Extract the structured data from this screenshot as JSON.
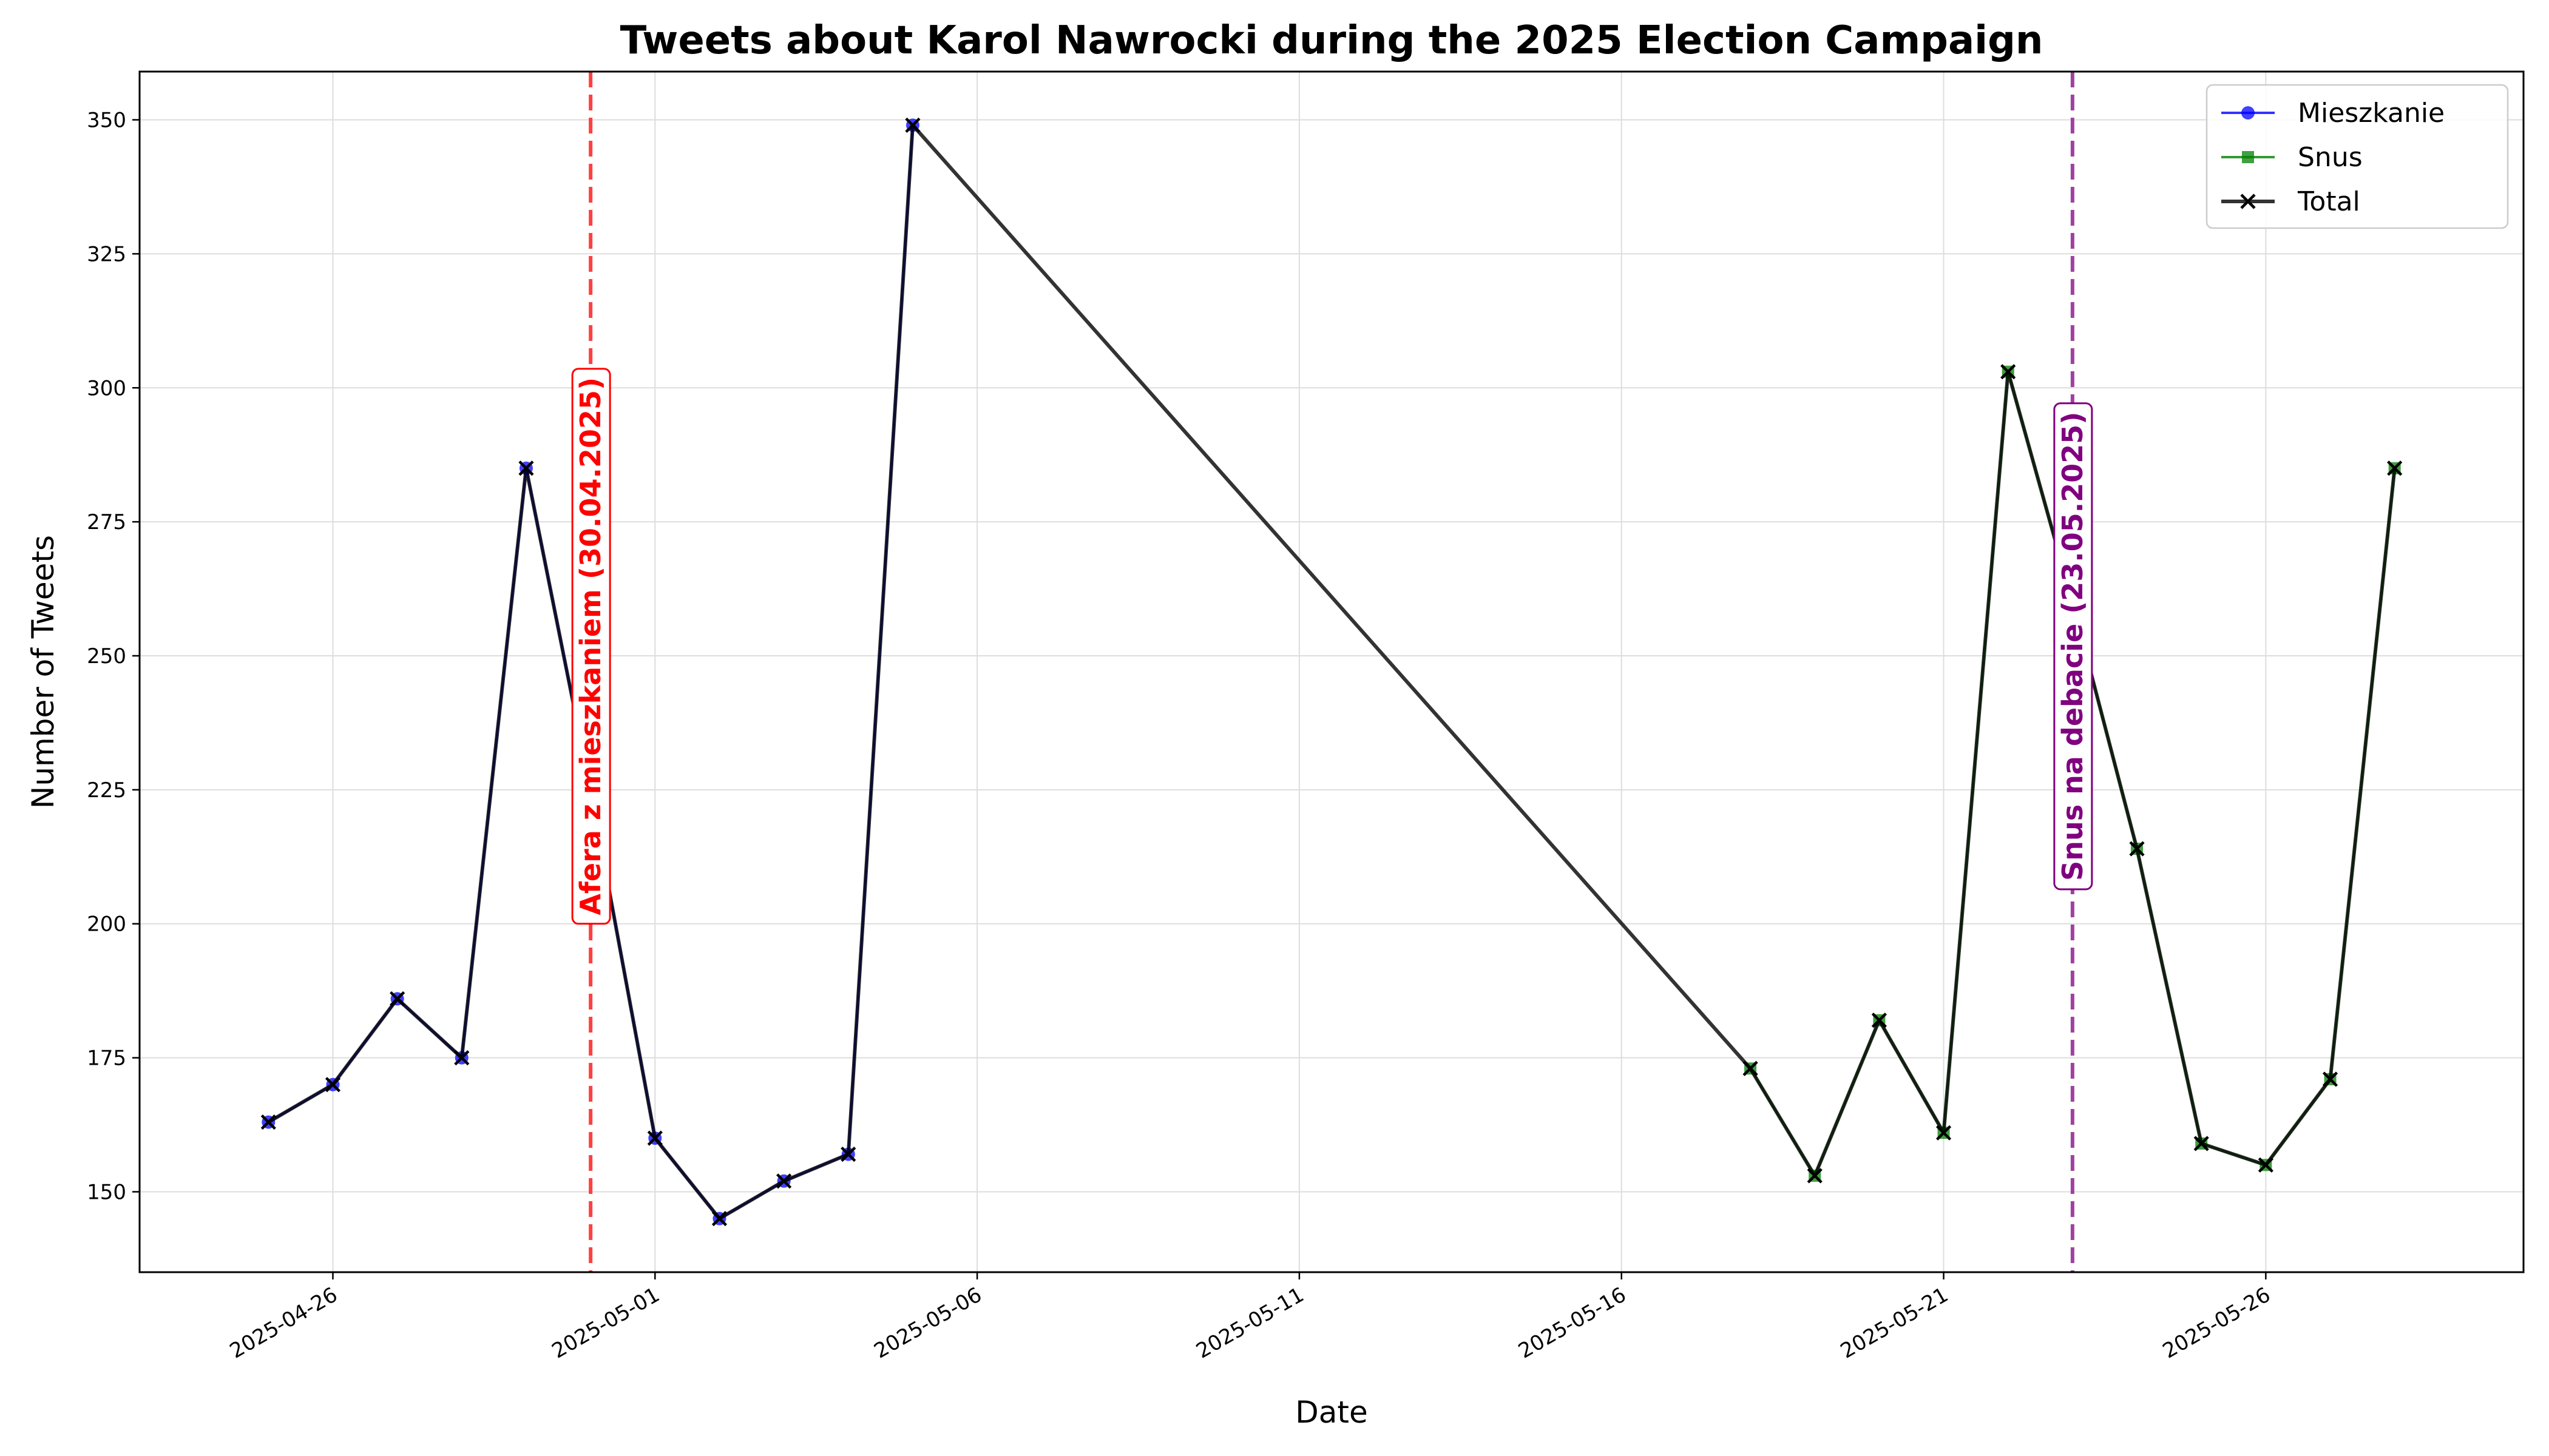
{
  "chart_data": {
    "type": "line",
    "title": "Tweets about Karol Nawrocki during the 2025 Election Campaign",
    "xlabel": "Date",
    "ylabel": "Number of Tweets",
    "x_axis": {
      "type": "date",
      "range": [
        "2025-04-23",
        "2025-05-30"
      ],
      "ticks": [
        "2025-04-26",
        "2025-05-01",
        "2025-05-06",
        "2025-05-11",
        "2025-05-16",
        "2025-05-21",
        "2025-05-26"
      ]
    },
    "y_axis": {
      "range": [
        135,
        359
      ],
      "ticks": [
        150,
        175,
        200,
        225,
        250,
        275,
        300,
        325,
        350
      ]
    },
    "grid": true,
    "legend_position": "top-right",
    "series": [
      {
        "name": "Mieszkanie",
        "color": "#0000ff",
        "marker": "circle",
        "points": [
          [
            "2025-04-25",
            163
          ],
          [
            "2025-04-26",
            170
          ],
          [
            "2025-04-27",
            186
          ],
          [
            "2025-04-28",
            175
          ],
          [
            "2025-04-29",
            285
          ],
          [
            "2025-04-30",
            225
          ],
          [
            "2025-05-01",
            160
          ],
          [
            "2025-05-02",
            145
          ],
          [
            "2025-05-03",
            152
          ],
          [
            "2025-05-04",
            157
          ],
          [
            "2025-05-05",
            349
          ]
        ]
      },
      {
        "name": "Snus",
        "color": "#008000",
        "marker": "square",
        "points": [
          [
            "2025-05-18",
            173
          ],
          [
            "2025-05-19",
            153
          ],
          [
            "2025-05-20",
            182
          ],
          [
            "2025-05-21",
            161
          ],
          [
            "2025-05-22",
            303
          ],
          [
            "2025-05-23",
            260
          ],
          [
            "2025-05-24",
            214
          ],
          [
            "2025-05-25",
            159
          ],
          [
            "2025-05-26",
            155
          ],
          [
            "2025-05-27",
            171
          ],
          [
            "2025-05-28",
            285
          ]
        ]
      },
      {
        "name": "Total",
        "color": "#000000",
        "marker": "x",
        "points": [
          [
            "2025-04-25",
            163
          ],
          [
            "2025-04-26",
            170
          ],
          [
            "2025-04-27",
            186
          ],
          [
            "2025-04-28",
            175
          ],
          [
            "2025-04-29",
            285
          ],
          [
            "2025-04-30",
            225
          ],
          [
            "2025-05-01",
            160
          ],
          [
            "2025-05-02",
            145
          ],
          [
            "2025-05-03",
            152
          ],
          [
            "2025-05-04",
            157
          ],
          [
            "2025-05-05",
            349
          ],
          [
            "2025-05-18",
            173
          ],
          [
            "2025-05-19",
            153
          ],
          [
            "2025-05-20",
            182
          ],
          [
            "2025-05-21",
            161
          ],
          [
            "2025-05-22",
            303
          ],
          [
            "2025-05-23",
            260
          ],
          [
            "2025-05-24",
            214
          ],
          [
            "2025-05-25",
            159
          ],
          [
            "2025-05-26",
            155
          ],
          [
            "2025-05-27",
            171
          ],
          [
            "2025-05-28",
            285
          ]
        ]
      }
    ],
    "annotations": [
      {
        "date": "2025-04-30",
        "text": "Afera z mieszkaniem (30.04.2025)",
        "color": "#ff0000",
        "line_color": "#ff4040"
      },
      {
        "date": "2025-05-23",
        "text": "Snus na debacie (23.05.2025)",
        "color": "#800080",
        "line_color": "#a040a0"
      }
    ]
  }
}
